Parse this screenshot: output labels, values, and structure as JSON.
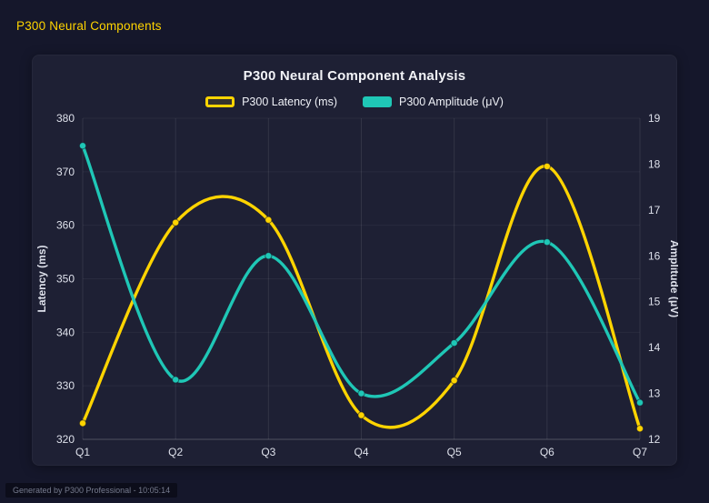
{
  "page": {
    "header_title": "P300 Neural Components",
    "footer_note": "Generated by P300 Professional - 10:05:14"
  },
  "chart_data": {
    "type": "line",
    "title": "P300 Neural Component Analysis",
    "categories": [
      "Q1",
      "Q2",
      "Q3",
      "Q4",
      "Q5",
      "Q6",
      "Q7"
    ],
    "series": [
      {
        "name": "P300 Latency (ms)",
        "axis": "left",
        "color": "#ffd400",
        "marker": "outline",
        "values": [
          323,
          360.5,
          361,
          324.5,
          331,
          371,
          322
        ]
      },
      {
        "name": "P300 Amplitude (μV)",
        "axis": "right",
        "color": "#1fc7b6",
        "marker": "solid",
        "values": [
          18.4,
          13.3,
          16.0,
          13.0,
          14.1,
          16.3,
          12.8
        ]
      }
    ],
    "left_axis": {
      "label": "Latency (ms)",
      "min": 320,
      "max": 380,
      "step": 10
    },
    "right_axis": {
      "label": "Amplitude (μV)",
      "min": 12,
      "max": 19,
      "step": 1
    },
    "grid": true,
    "legend_position": "top",
    "curve": "smooth"
  }
}
